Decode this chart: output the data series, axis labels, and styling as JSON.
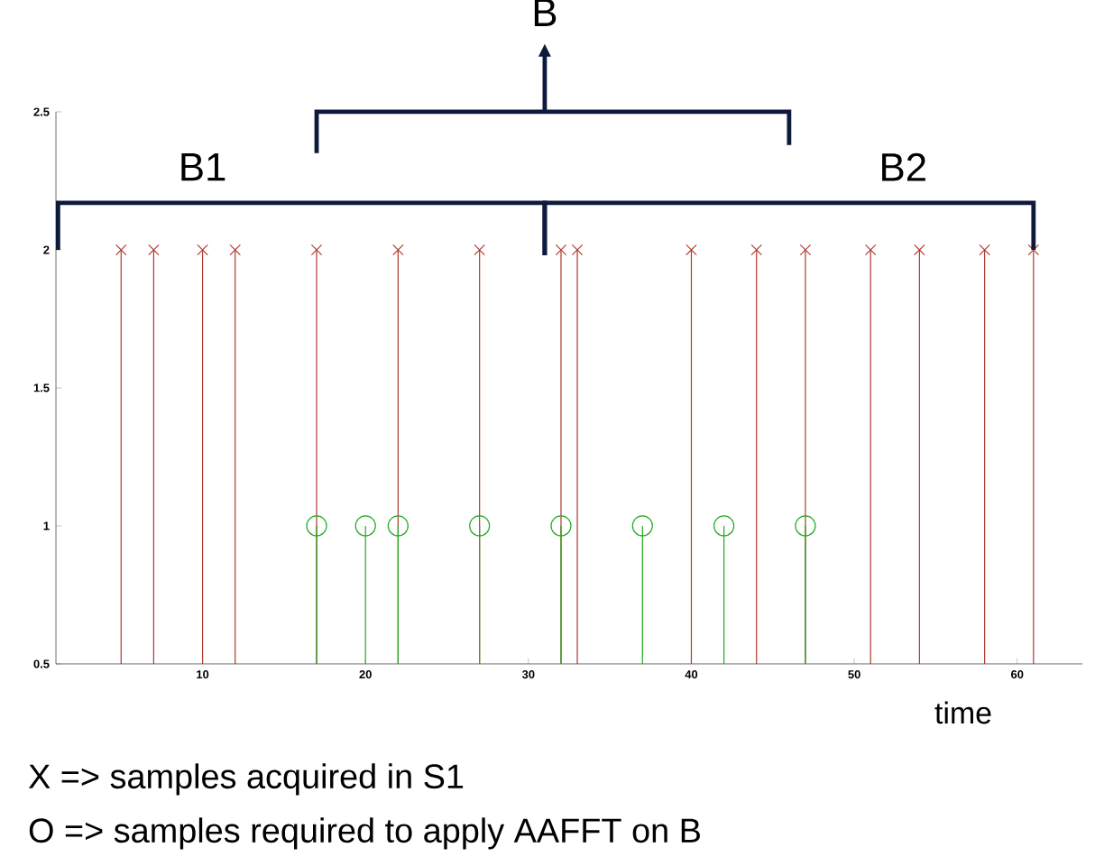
{
  "chart_data": {
    "type": "lollipop",
    "xlabel": "time",
    "x": [
      5,
      7,
      10,
      12,
      17,
      22,
      27,
      32,
      33,
      40,
      44,
      47,
      51,
      54,
      58,
      61
    ],
    "series": [
      {
        "color": "#b03a2e",
        "marker": "cross",
        "values": [
          2,
          2,
          2,
          2,
          2,
          2,
          2,
          2,
          2,
          2,
          2,
          2,
          2,
          2,
          2,
          2
        ]
      },
      {
        "color": "#22aa22",
        "marker": "circle",
        "x": [
          17,
          20,
          22,
          27,
          32,
          37,
          42,
          47
        ],
        "values": [
          1,
          1,
          1,
          1,
          1,
          1,
          1,
          1
        ]
      }
    ],
    "xlim": [
      1,
      64
    ],
    "ylim": [
      0.5,
      2.5
    ],
    "xticks": [
      10,
      20,
      30,
      40,
      50,
      60
    ],
    "yticks": [
      0.5,
      1,
      1.5,
      2,
      2.5
    ],
    "annotations": [
      "B1",
      "B2",
      "B",
      "X  =>  samples acquired in S1",
      "O  =>  samples required to apply AAFFT on B"
    ]
  }
}
